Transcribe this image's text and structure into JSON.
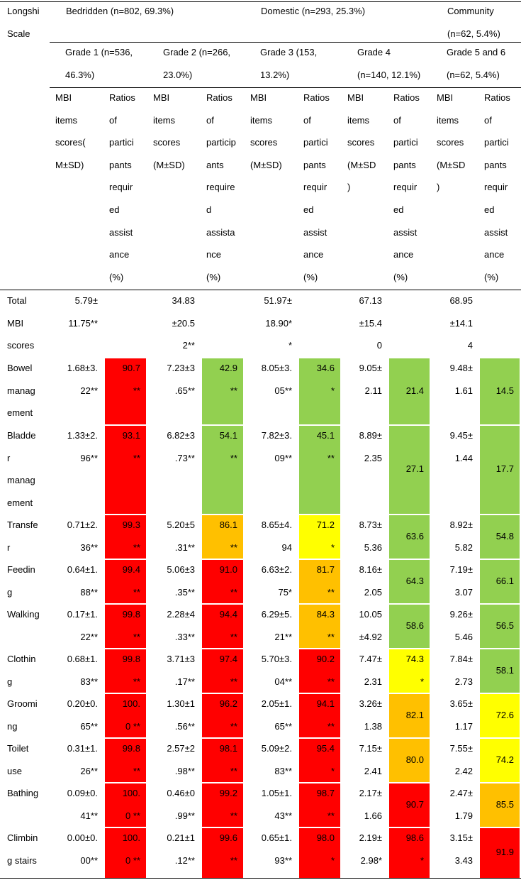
{
  "colors": {
    "red": "#ff0000",
    "orange": "#ffc000",
    "yellow": "#ffff00",
    "green": "#92d050"
  },
  "header": {
    "scale_label": [
      "Longshi",
      "Scale"
    ],
    "groups": [
      {
        "label": [
          "Bedridden (n=802, 69.3%)"
        ]
      },
      {
        "label": [
          "Domestic (n=293, 25.3%)"
        ]
      },
      {
        "label": [
          "Community",
          "(n=62, 5.4%)"
        ]
      }
    ],
    "grades": [
      {
        "label": [
          "Grade 1 (n=536,",
          "46.3%)"
        ]
      },
      {
        "label": [
          "Grade 2 (n=266,",
          "23.0%)"
        ]
      },
      {
        "label": [
          "Grade 3 (153,",
          "13.2%)"
        ]
      },
      {
        "label": [
          "Grade 4",
          "(n=140, 12.1%)"
        ]
      },
      {
        "label": [
          "Grade 5 and 6",
          "(n=62, 5.4%)"
        ]
      }
    ],
    "subcols": [
      {
        "mbi": [
          "MBI",
          "items",
          "scores(",
          "M±SD)"
        ],
        "ratio": [
          "Ratios",
          "of",
          "partici",
          "pants",
          "requir",
          "ed",
          "assist",
          "ance",
          "(%)"
        ]
      },
      {
        "mbi": [
          "MBI",
          "items",
          "scores",
          "(M±SD)"
        ],
        "ratio": [
          "Ratios",
          "of",
          "particip",
          "ants",
          "require",
          "d",
          "assista",
          "nce",
          "(%)"
        ]
      },
      {
        "mbi": [
          "MBI",
          "items",
          "scores",
          "(M±SD)"
        ],
        "ratio": [
          "Ratios",
          "of",
          "partici",
          "pants",
          "requir",
          "ed",
          "assist",
          "ance",
          "(%)"
        ]
      },
      {
        "mbi": [
          "MBI",
          "items",
          "scores",
          "(M±SD",
          ")"
        ],
        "ratio": [
          "Ratios",
          "of",
          "partici",
          "pants",
          "requir",
          "ed",
          "assist",
          "ance",
          "(%)"
        ]
      },
      {
        "mbi": [
          "MBI",
          "items",
          "scores",
          "(M±SD",
          ")"
        ],
        "ratio": [
          "Ratios",
          "of",
          "partici",
          "pants",
          "requir",
          "ed",
          "assist",
          "ance",
          "(%)"
        ]
      }
    ]
  },
  "rows": [
    {
      "label": [
        "Total",
        "MBI",
        "scores"
      ],
      "cells": [
        {
          "mbi": [
            "5.79±",
            "11.75**"
          ]
        },
        {
          "mbi": [
            "34.83",
            "±20.5",
            "2**"
          ]
        },
        {
          "mbi": [
            "51.97±",
            "18.90*",
            "*"
          ]
        },
        {
          "mbi": [
            "67.13",
            "±15.4",
            "0"
          ]
        },
        {
          "mbi": [
            "68.95",
            "±14.1",
            "4"
          ]
        }
      ]
    },
    {
      "label": [
        "Bowel",
        "manag",
        "ement"
      ],
      "cells": [
        {
          "mbi": [
            "1.68±3.",
            "22**"
          ],
          "ratio": [
            "90.7",
            "**"
          ],
          "color": "red"
        },
        {
          "mbi": [
            "7.23±3",
            ".65**"
          ],
          "ratio": [
            "42.9",
            "**"
          ],
          "color": "green"
        },
        {
          "mbi": [
            "8.05±3.",
            "05**"
          ],
          "ratio": [
            "34.6",
            "*"
          ],
          "color": "green"
        },
        {
          "mbi": [
            "9.05±",
            "2.11"
          ],
          "ratio": [
            "21.4"
          ],
          "color": "green"
        },
        {
          "mbi": [
            "9.48±",
            "1.61"
          ],
          "ratio": [
            "14.5"
          ],
          "color": "green"
        }
      ]
    },
    {
      "label": [
        "Bladde",
        "r",
        "manag",
        "ement"
      ],
      "cells": [
        {
          "mbi": [
            "1.33±2.",
            "96**"
          ],
          "ratio": [
            "93.1",
            "**"
          ],
          "color": "red"
        },
        {
          "mbi": [
            "6.82±3",
            ".73**"
          ],
          "ratio": [
            "54.1",
            "**"
          ],
          "color": "green"
        },
        {
          "mbi": [
            "7.82±3.",
            "09**"
          ],
          "ratio": [
            "45.1",
            "**"
          ],
          "color": "green"
        },
        {
          "mbi": [
            "8.89±",
            "2.35"
          ],
          "ratio": [
            "27.1"
          ],
          "color": "green"
        },
        {
          "mbi": [
            "9.45±",
            "1.44"
          ],
          "ratio": [
            "17.7"
          ],
          "color": "green"
        }
      ]
    },
    {
      "label": [
        "Transfe",
        "r"
      ],
      "cells": [
        {
          "mbi": [
            "0.71±2.",
            "36**"
          ],
          "ratio": [
            "99.3",
            "**"
          ],
          "color": "red"
        },
        {
          "mbi": [
            "5.20±5",
            ".31**"
          ],
          "ratio": [
            "86.1",
            "**"
          ],
          "color": "orange"
        },
        {
          "mbi": [
            "8.65±4.",
            "94"
          ],
          "ratio": [
            "71.2",
            "*"
          ],
          "color": "yellow"
        },
        {
          "mbi": [
            "8.73±",
            "5.36"
          ],
          "ratio": [
            "63.6"
          ],
          "color": "green"
        },
        {
          "mbi": [
            "8.92±",
            "5.82"
          ],
          "ratio": [
            "54.8"
          ],
          "color": "green"
        }
      ]
    },
    {
      "label": [
        "Feedin",
        "g"
      ],
      "cells": [
        {
          "mbi": [
            "0.64±1.",
            "88**"
          ],
          "ratio": [
            "99.4",
            "**"
          ],
          "color": "red"
        },
        {
          "mbi": [
            "5.06±3",
            ".35**"
          ],
          "ratio": [
            "91.0",
            "**"
          ],
          "color": "red"
        },
        {
          "mbi": [
            "6.63±2.",
            "75*"
          ],
          "ratio": [
            "81.7",
            "**"
          ],
          "color": "orange"
        },
        {
          "mbi": [
            "8.16±",
            "2.05"
          ],
          "ratio": [
            "64.3"
          ],
          "color": "green"
        },
        {
          "mbi": [
            "7.19±",
            "3.07"
          ],
          "ratio": [
            "66.1"
          ],
          "color": "green"
        }
      ]
    },
    {
      "label": [
        "Walking"
      ],
      "cells": [
        {
          "mbi": [
            "0.17±1.",
            "22**"
          ],
          "ratio": [
            "99.8",
            "**"
          ],
          "color": "red"
        },
        {
          "mbi": [
            "2.28±4",
            ".33**"
          ],
          "ratio": [
            "94.4",
            "**"
          ],
          "color": "red"
        },
        {
          "mbi": [
            "6.29±5.",
            "21**"
          ],
          "ratio": [
            "84.3",
            "**"
          ],
          "color": "orange"
        },
        {
          "mbi": [
            "10.05",
            "±4.92"
          ],
          "ratio": [
            "58.6"
          ],
          "color": "green"
        },
        {
          "mbi": [
            "9.26±",
            "5.46"
          ],
          "ratio": [
            "56.5"
          ],
          "color": "green"
        }
      ]
    },
    {
      "label": [
        "Clothin",
        "g"
      ],
      "cells": [
        {
          "mbi": [
            "0.68±1.",
            "83**"
          ],
          "ratio": [
            "99.8",
            "**"
          ],
          "color": "red"
        },
        {
          "mbi": [
            "3.71±3",
            ".17**"
          ],
          "ratio": [
            "97.4",
            "**"
          ],
          "color": "red"
        },
        {
          "mbi": [
            "5.70±3.",
            "04**"
          ],
          "ratio": [
            "90.2",
            "**"
          ],
          "color": "red"
        },
        {
          "mbi": [
            "7.47±",
            "2.31"
          ],
          "ratio": [
            "74.3",
            "*"
          ],
          "color": "yellow"
        },
        {
          "mbi": [
            "7.84±",
            "2.73"
          ],
          "ratio": [
            "58.1"
          ],
          "color": "green"
        }
      ]
    },
    {
      "label": [
        "Groomi",
        "ng"
      ],
      "cells": [
        {
          "mbi": [
            "0.20±0.",
            "65**"
          ],
          "ratio": [
            "100.",
            "0 **"
          ],
          "color": "red"
        },
        {
          "mbi": [
            "1.30±1",
            ".56**"
          ],
          "ratio": [
            "96.2",
            "**"
          ],
          "color": "red"
        },
        {
          "mbi": [
            "2.05±1.",
            "65**"
          ],
          "ratio": [
            "94.1",
            "**"
          ],
          "color": "red"
        },
        {
          "mbi": [
            "3.26±",
            "1.38"
          ],
          "ratio": [
            "82.1"
          ],
          "color": "orange"
        },
        {
          "mbi": [
            "3.65±",
            "1.17"
          ],
          "ratio": [
            "72.6"
          ],
          "color": "yellow"
        }
      ]
    },
    {
      "label": [
        "Toilet",
        "use"
      ],
      "cells": [
        {
          "mbi": [
            "0.31±1.",
            "26**"
          ],
          "ratio": [
            "99.8",
            "**"
          ],
          "color": "red"
        },
        {
          "mbi": [
            "2.57±2",
            ".98**"
          ],
          "ratio": [
            "98.1",
            "**"
          ],
          "color": "red"
        },
        {
          "mbi": [
            "5.09±2.",
            "83**"
          ],
          "ratio": [
            "95.4",
            "*"
          ],
          "color": "red"
        },
        {
          "mbi": [
            "7.15±",
            "2.41"
          ],
          "ratio": [
            "80.0"
          ],
          "color": "orange"
        },
        {
          "mbi": [
            "7.55±",
            "2.42"
          ],
          "ratio": [
            "74.2"
          ],
          "color": "yellow"
        }
      ]
    },
    {
      "label": [
        "Bathing"
      ],
      "cells": [
        {
          "mbi": [
            "0.09±0.",
            "41**"
          ],
          "ratio": [
            "100.",
            "0 **"
          ],
          "color": "red"
        },
        {
          "mbi": [
            "0.46±0",
            ".99**"
          ],
          "ratio": [
            "99.2",
            "**"
          ],
          "color": "red"
        },
        {
          "mbi": [
            "1.05±1.",
            "43**"
          ],
          "ratio": [
            "98.7",
            "**"
          ],
          "color": "red"
        },
        {
          "mbi": [
            "2.17±",
            "1.66"
          ],
          "ratio": [
            "90.7"
          ],
          "color": "red"
        },
        {
          "mbi": [
            "2.47±",
            "1.79"
          ],
          "ratio": [
            "85.5"
          ],
          "color": "orange"
        }
      ]
    },
    {
      "label": [
        "Climbin",
        "g stairs"
      ],
      "cells": [
        {
          "mbi": [
            "0.00±0.",
            "00**"
          ],
          "ratio": [
            "100.",
            "0 **"
          ],
          "color": "red"
        },
        {
          "mbi": [
            "0.21±1",
            ".12**"
          ],
          "ratio": [
            "99.6",
            "**"
          ],
          "color": "red"
        },
        {
          "mbi": [
            "0.65±1.",
            "93**"
          ],
          "ratio": [
            "98.0",
            "*"
          ],
          "color": "red"
        },
        {
          "mbi": [
            "2.19±",
            "2.98*"
          ],
          "ratio": [
            "98.6",
            "*"
          ],
          "color": "red"
        },
        {
          "mbi": [
            "3.15±",
            "3.43"
          ],
          "ratio": [
            "91.9"
          ],
          "color": "red"
        }
      ]
    }
  ]
}
